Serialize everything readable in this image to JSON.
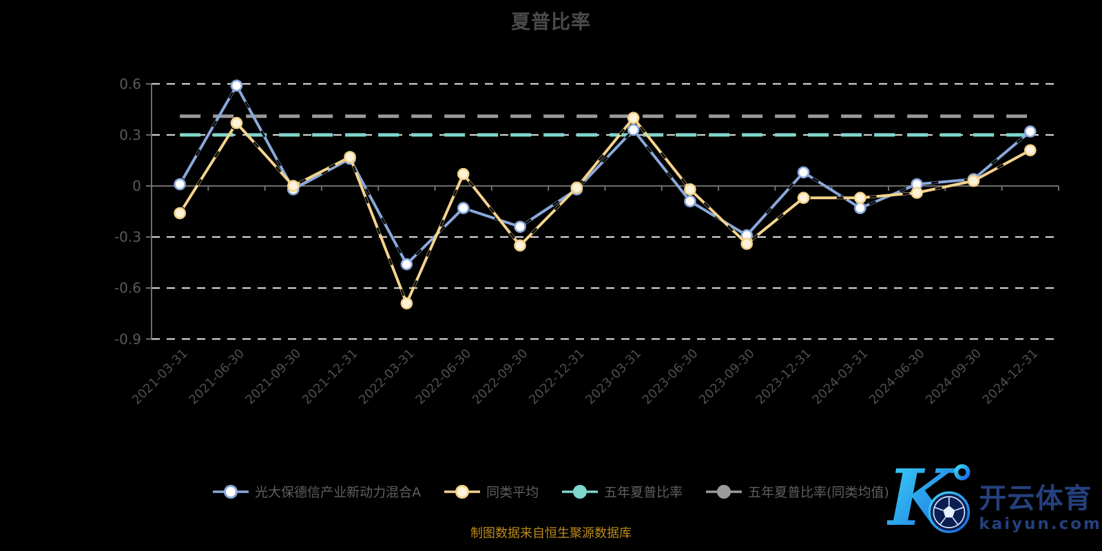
{
  "title": "夏普比率",
  "source_note": "制图数据来自恒生聚源数据库",
  "watermark": {
    "brand": "开云体育",
    "domain": "kaiyun.com",
    "logo_letter": "K"
  },
  "colors": {
    "background": "#000000",
    "title_text": "#4a4a4a",
    "grid": "#e8e8e8",
    "axis": "#6e6e6e",
    "axis_label": "#5a5a5a",
    "x_label": "#4f4f4f",
    "legend_text": "#5f5f5f",
    "source_text": "#bd8a1a",
    "line_dash_overlay": "#0b0b0b",
    "watermark_text": "#24407e",
    "watermark_gradient_start": "#3ed8f5",
    "watermark_gradient_end": "#1668e3",
    "ball_fill": "#0a1e52"
  },
  "chart_data": {
    "type": "line",
    "title": "夏普比率",
    "categories": [
      "2021-03-31",
      "2021-06-30",
      "2021-09-30",
      "2021-12-31",
      "2022-03-31",
      "2022-06-30",
      "2022-09-30",
      "2022-12-31",
      "2023-03-31",
      "2023-06-30",
      "2023-09-30",
      "2023-12-31",
      "2024-03-31",
      "2024-06-30",
      "2024-09-30",
      "2024-12-31"
    ],
    "yticks": [
      0.6,
      0.3,
      0,
      -0.3,
      -0.6,
      -0.9
    ],
    "ylim": [
      -0.9,
      0.6
    ],
    "grid": "horizontal-dashed",
    "legend_position": "bottom",
    "series": [
      {
        "name": "光大保德信产业新动力混合A",
        "color": "#8aa8da",
        "marker_fill": "#ffffff",
        "values": [
          0.01,
          0.59,
          -0.02,
          0.16,
          -0.46,
          -0.13,
          -0.24,
          -0.02,
          0.33,
          -0.09,
          -0.29,
          0.08,
          -0.13,
          0.01,
          0.04,
          0.32
        ]
      },
      {
        "name": "同类平均",
        "color": "#f5d38d",
        "marker_fill": "#fdf3da",
        "values": [
          -0.16,
          0.37,
          0.0,
          0.17,
          -0.69,
          0.07,
          -0.35,
          -0.01,
          0.4,
          -0.02,
          -0.34,
          -0.07,
          -0.07,
          -0.04,
          0.03,
          0.21
        ]
      },
      {
        "name": "五年夏普比率",
        "color": "#7fd6cb",
        "constant": 0.3
      },
      {
        "name": "五年夏普比率(同类均值)",
        "color": "#9a9a9a",
        "constant": 0.41
      }
    ]
  }
}
